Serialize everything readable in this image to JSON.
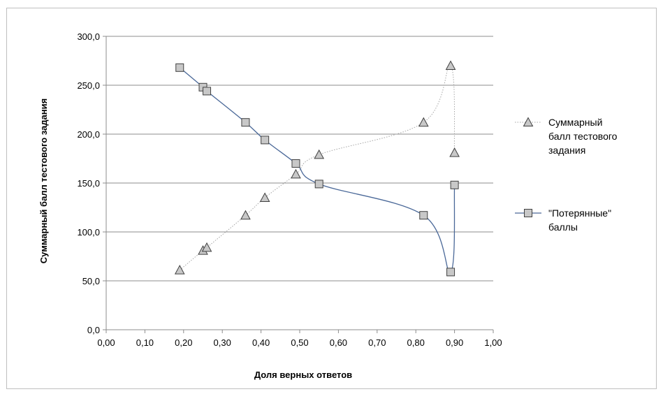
{
  "chart_data": {
    "type": "scatter",
    "xlabel": "Доля верных ответов",
    "ylabel": "Суммарный балл тестового  задания",
    "xlim": [
      0,
      1
    ],
    "ylim": [
      0,
      300
    ],
    "x_ticks": [
      "0,00",
      "0,10",
      "0,20",
      "0,30",
      "0,40",
      "0,50",
      "0,60",
      "0,70",
      "0,80",
      "0,90",
      "1,00"
    ],
    "y_ticks": [
      "0,0",
      "50,0",
      "100,0",
      "150,0",
      "200,0",
      "250,0",
      "300,0"
    ],
    "grid": "horizontal",
    "legend_position": "right",
    "series": [
      {
        "name": "Суммарный балл тестового задания",
        "legend_lines": [
          "Суммарный",
          "балл тестового",
          "задания"
        ],
        "marker": "triangle",
        "line_style": "dotted",
        "color": "#a6a6a6",
        "points": [
          [
            0.19,
            61
          ],
          [
            0.25,
            81
          ],
          [
            0.26,
            84
          ],
          [
            0.36,
            117
          ],
          [
            0.41,
            135
          ],
          [
            0.49,
            159
          ],
          [
            0.55,
            179
          ],
          [
            0.82,
            212
          ],
          [
            0.89,
            270
          ],
          [
            0.9,
            181
          ]
        ]
      },
      {
        "name": "\"Потерянные\" баллы",
        "legend_lines": [
          "\"Потерянные\"",
          "баллы"
        ],
        "marker": "square",
        "line_style": "solid",
        "color": "#4a6898",
        "points": [
          [
            0.19,
            268
          ],
          [
            0.25,
            248
          ],
          [
            0.26,
            244
          ],
          [
            0.36,
            212
          ],
          [
            0.41,
            194
          ],
          [
            0.49,
            170
          ],
          [
            0.55,
            149
          ],
          [
            0.82,
            117
          ],
          [
            0.89,
            59
          ],
          [
            0.9,
            148
          ]
        ]
      }
    ]
  }
}
